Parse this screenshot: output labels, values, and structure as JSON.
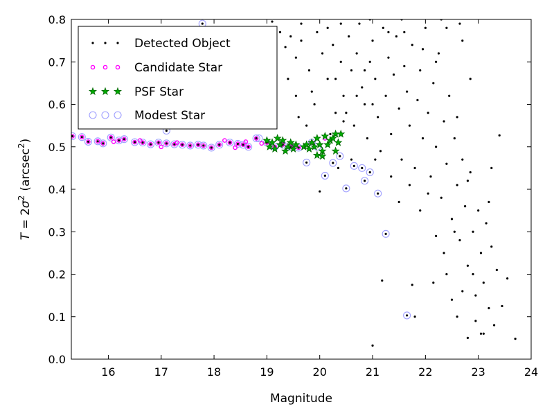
{
  "chart_data": {
    "type": "scatter",
    "xlabel": "Magnitude",
    "ylabel_parts": {
      "lhs": "T",
      "eq": " = 2",
      "sigma": "σ",
      "sup": "2",
      "unit": "(arcsec",
      "unit_sup": "2",
      "unit_close": ")"
    },
    "xlim": [
      15.3,
      24.0
    ],
    "ylim": [
      0.0,
      0.8
    ],
    "xticks": [
      16,
      17,
      18,
      19,
      20,
      21,
      22,
      23,
      24
    ],
    "yticks": [
      0.0,
      0.1,
      0.2,
      0.3,
      0.4,
      0.5,
      0.6,
      0.7,
      0.8
    ],
    "grid": false,
    "legend_position": "top-left",
    "colors": {
      "detected": "#000000",
      "candidate": "#ff00ff",
      "psf_face": "#00aa00",
      "psf_edge": "#006400",
      "modest": "#9f9fff"
    },
    "series": [
      {
        "name": "Detected Object",
        "marker": "dot",
        "points": [
          [
            15.32,
            0.525
          ],
          [
            15.5,
            0.523
          ],
          [
            15.62,
            0.512
          ],
          [
            15.8,
            0.513
          ],
          [
            15.9,
            0.508
          ],
          [
            16.05,
            0.522
          ],
          [
            16.2,
            0.515
          ],
          [
            16.3,
            0.518
          ],
          [
            16.5,
            0.511
          ],
          [
            16.65,
            0.51
          ],
          [
            16.8,
            0.506
          ],
          [
            16.95,
            0.51
          ],
          [
            17.1,
            0.508
          ],
          [
            17.1,
            0.538
          ],
          [
            17.25,
            0.506
          ],
          [
            17.4,
            0.505
          ],
          [
            17.55,
            0.503
          ],
          [
            17.7,
            0.505
          ],
          [
            17.8,
            0.503
          ],
          [
            17.78,
            0.79
          ],
          [
            17.95,
            0.498
          ],
          [
            18.1,
            0.505
          ],
          [
            18.3,
            0.51
          ],
          [
            18.45,
            0.507
          ],
          [
            18.55,
            0.505
          ],
          [
            18.65,
            0.5
          ],
          [
            18.8,
            0.52
          ],
          [
            19.0,
            0.51
          ],
          [
            19.15,
            0.5
          ],
          [
            19.3,
            0.505
          ],
          [
            19.45,
            0.5
          ],
          [
            19.6,
            0.498
          ],
          [
            19.75,
            0.463
          ],
          [
            19.85,
            0.51
          ],
          [
            20.0,
            0.395
          ],
          [
            20.1,
            0.432
          ],
          [
            20.25,
            0.462
          ],
          [
            20.38,
            0.478
          ],
          [
            20.5,
            0.402
          ],
          [
            20.65,
            0.455
          ],
          [
            20.8,
            0.45
          ],
          [
            20.85,
            0.42
          ],
          [
            20.95,
            0.44
          ],
          [
            21.1,
            0.39
          ],
          [
            21.25,
            0.295
          ],
          [
            21.65,
            0.103
          ],
          [
            21.18,
            0.185
          ],
          [
            21.0,
            0.032
          ],
          [
            18.95,
            0.73
          ],
          [
            19.1,
            0.795
          ],
          [
            19.25,
            0.77
          ],
          [
            19.35,
            0.735
          ],
          [
            19.45,
            0.76
          ],
          [
            19.55,
            0.71
          ],
          [
            19.65,
            0.75
          ],
          [
            19.8,
            0.68
          ],
          [
            19.85,
            0.63
          ],
          [
            19.9,
            0.6
          ],
          [
            19.55,
            0.62
          ],
          [
            19.4,
            0.66
          ],
          [
            19.6,
            0.57
          ],
          [
            19.75,
            0.55
          ],
          [
            20.05,
            0.72
          ],
          [
            20.15,
            0.78
          ],
          [
            20.25,
            0.74
          ],
          [
            20.3,
            0.66
          ],
          [
            20.4,
            0.7
          ],
          [
            20.45,
            0.62
          ],
          [
            20.5,
            0.58
          ],
          [
            20.55,
            0.76
          ],
          [
            20.6,
            0.68
          ],
          [
            20.65,
            0.55
          ],
          [
            20.7,
            0.72
          ],
          [
            20.75,
            0.79
          ],
          [
            20.8,
            0.64
          ],
          [
            20.85,
            0.6
          ],
          [
            20.9,
            0.52
          ],
          [
            20.95,
            0.7
          ],
          [
            21.0,
            0.75
          ],
          [
            21.05,
            0.66
          ],
          [
            21.1,
            0.57
          ],
          [
            21.15,
            0.49
          ],
          [
            21.2,
            0.78
          ],
          [
            21.25,
            0.62
          ],
          [
            21.3,
            0.71
          ],
          [
            21.35,
            0.53
          ],
          [
            21.4,
            0.67
          ],
          [
            21.45,
            0.76
          ],
          [
            21.5,
            0.59
          ],
          [
            21.55,
            0.47
          ],
          [
            21.6,
            0.69
          ],
          [
            21.65,
            0.63
          ],
          [
            21.7,
            0.55
          ],
          [
            21.75,
            0.74
          ],
          [
            21.8,
            0.45
          ],
          [
            21.85,
            0.61
          ],
          [
            21.9,
            0.68
          ],
          [
            21.95,
            0.52
          ],
          [
            22.0,
            0.78
          ],
          [
            22.05,
            0.58
          ],
          [
            22.1,
            0.43
          ],
          [
            22.15,
            0.65
          ],
          [
            22.2,
            0.5
          ],
          [
            22.25,
            0.72
          ],
          [
            22.3,
            0.38
          ],
          [
            22.35,
            0.56
          ],
          [
            22.4,
            0.46
          ],
          [
            22.45,
            0.62
          ],
          [
            22.5,
            0.33
          ],
          [
            22.55,
            0.52
          ],
          [
            22.6,
            0.41
          ],
          [
            22.65,
            0.28
          ],
          [
            22.7,
            0.47
          ],
          [
            22.75,
            0.36
          ],
          [
            22.8,
            0.22
          ],
          [
            22.85,
            0.44
          ],
          [
            22.9,
            0.3
          ],
          [
            22.95,
            0.15
          ],
          [
            23.0,
            0.35
          ],
          [
            23.05,
            0.25
          ],
          [
            23.1,
            0.18
          ],
          [
            23.15,
            0.32
          ],
          [
            23.2,
            0.12
          ],
          [
            23.25,
            0.45
          ],
          [
            23.3,
            0.08
          ],
          [
            23.35,
            0.21
          ],
          [
            23.1,
            0.06
          ],
          [
            22.8,
            0.05
          ],
          [
            22.5,
            0.14
          ],
          [
            22.4,
            0.2
          ],
          [
            22.6,
            0.1
          ],
          [
            22.95,
            0.09
          ],
          [
            23.4,
            0.527
          ],
          [
            23.7,
            0.048
          ],
          [
            23.55,
            0.19
          ],
          [
            23.25,
            0.265
          ],
          [
            23.45,
            0.125
          ],
          [
            23.05,
            0.06
          ],
          [
            22.15,
            0.18
          ],
          [
            21.8,
            0.1
          ],
          [
            21.75,
            0.175
          ],
          [
            21.05,
            0.47
          ],
          [
            20.4,
            0.79
          ],
          [
            20.2,
            0.53
          ],
          [
            20.95,
            0.8
          ],
          [
            21.55,
            0.8
          ],
          [
            22.3,
            0.8
          ],
          [
            22.65,
            0.79
          ],
          [
            20.35,
            0.45
          ],
          [
            20.45,
            0.56
          ],
          [
            20.6,
            0.47
          ],
          [
            21.35,
            0.43
          ],
          [
            21.5,
            0.37
          ],
          [
            21.7,
            0.41
          ],
          [
            21.9,
            0.35
          ],
          [
            22.05,
            0.39
          ],
          [
            22.2,
            0.29
          ],
          [
            22.35,
            0.25
          ],
          [
            22.55,
            0.3
          ],
          [
            22.7,
            0.16
          ],
          [
            22.9,
            0.2
          ],
          [
            23.2,
            0.37
          ],
          [
            22.8,
            0.42
          ],
          [
            22.6,
            0.57
          ],
          [
            22.85,
            0.66
          ],
          [
            22.7,
            0.75
          ],
          [
            22.4,
            0.78
          ],
          [
            22.2,
            0.7
          ],
          [
            21.95,
            0.73
          ],
          [
            21.6,
            0.77
          ],
          [
            21.3,
            0.77
          ],
          [
            21.0,
            0.6
          ],
          [
            20.85,
            0.68
          ],
          [
            20.7,
            0.62
          ],
          [
            20.3,
            0.58
          ],
          [
            20.15,
            0.66
          ],
          [
            19.95,
            0.77
          ],
          [
            19.65,
            0.79
          ]
        ]
      },
      {
        "name": "Candidate Star",
        "marker": "circle-small",
        "points": [
          [
            15.32,
            0.525
          ],
          [
            15.5,
            0.523
          ],
          [
            15.62,
            0.512
          ],
          [
            15.8,
            0.513
          ],
          [
            15.9,
            0.508
          ],
          [
            16.05,
            0.522
          ],
          [
            16.2,
            0.515
          ],
          [
            16.3,
            0.518
          ],
          [
            16.5,
            0.511
          ],
          [
            16.65,
            0.51
          ],
          [
            16.8,
            0.506
          ],
          [
            16.95,
            0.51
          ],
          [
            17.1,
            0.508
          ],
          [
            17.25,
            0.506
          ],
          [
            17.4,
            0.505
          ],
          [
            17.55,
            0.503
          ],
          [
            17.7,
            0.505
          ],
          [
            17.8,
            0.503
          ],
          [
            17.95,
            0.498
          ],
          [
            18.1,
            0.505
          ],
          [
            18.3,
            0.51
          ],
          [
            18.45,
            0.507
          ],
          [
            18.55,
            0.505
          ],
          [
            18.65,
            0.5
          ],
          [
            18.8,
            0.52
          ],
          [
            16.1,
            0.512
          ],
          [
            16.6,
            0.515
          ],
          [
            17.0,
            0.5
          ],
          [
            17.3,
            0.51
          ],
          [
            18.2,
            0.515
          ],
          [
            18.4,
            0.498
          ],
          [
            18.6,
            0.512
          ],
          [
            18.9,
            0.508
          ],
          [
            19.0,
            0.51
          ],
          [
            19.15,
            0.5
          ],
          [
            19.3,
            0.505
          ],
          [
            19.45,
            0.5
          ],
          [
            19.6,
            0.498
          ],
          [
            19.85,
            0.51
          ],
          [
            20.1,
            0.52
          ]
        ]
      },
      {
        "name": "PSF Star",
        "marker": "star",
        "points": [
          [
            19.0,
            0.515
          ],
          [
            19.05,
            0.5
          ],
          [
            19.1,
            0.51
          ],
          [
            19.15,
            0.495
          ],
          [
            19.2,
            0.52
          ],
          [
            19.25,
            0.505
          ],
          [
            19.3,
            0.515
          ],
          [
            19.35,
            0.49
          ],
          [
            19.4,
            0.5
          ],
          [
            19.45,
            0.51
          ],
          [
            19.5,
            0.495
          ],
          [
            19.55,
            0.505
          ],
          [
            19.7,
            0.5
          ],
          [
            19.75,
            0.505
          ],
          [
            19.8,
            0.495
          ],
          [
            19.85,
            0.51
          ],
          [
            19.9,
            0.5
          ],
          [
            19.95,
            0.52
          ],
          [
            20.0,
            0.505
          ],
          [
            20.05,
            0.49
          ],
          [
            20.1,
            0.525
          ],
          [
            20.15,
            0.505
          ],
          [
            20.2,
            0.515
          ],
          [
            20.25,
            0.52
          ],
          [
            20.3,
            0.53
          ],
          [
            20.35,
            0.51
          ],
          [
            20.4,
            0.53
          ],
          [
            19.95,
            0.48
          ],
          [
            20.05,
            0.478
          ],
          [
            20.3,
            0.49
          ]
        ]
      },
      {
        "name": "Modest Star",
        "marker": "circle-large",
        "points": [
          [
            15.32,
            0.525
          ],
          [
            15.5,
            0.523
          ],
          [
            15.62,
            0.512
          ],
          [
            15.8,
            0.513
          ],
          [
            15.9,
            0.508
          ],
          [
            16.05,
            0.522
          ],
          [
            16.2,
            0.515
          ],
          [
            16.3,
            0.518
          ],
          [
            16.5,
            0.511
          ],
          [
            16.65,
            0.51
          ],
          [
            16.8,
            0.506
          ],
          [
            16.95,
            0.51
          ],
          [
            17.1,
            0.508
          ],
          [
            17.1,
            0.538
          ],
          [
            17.25,
            0.506
          ],
          [
            17.4,
            0.505
          ],
          [
            17.55,
            0.503
          ],
          [
            17.7,
            0.505
          ],
          [
            17.8,
            0.503
          ],
          [
            17.78,
            0.79
          ],
          [
            17.95,
            0.498
          ],
          [
            18.1,
            0.505
          ],
          [
            18.3,
            0.51
          ],
          [
            18.45,
            0.507
          ],
          [
            18.55,
            0.505
          ],
          [
            18.65,
            0.5
          ],
          [
            18.8,
            0.52
          ],
          [
            19.0,
            0.51
          ],
          [
            19.15,
            0.5
          ],
          [
            19.3,
            0.505
          ],
          [
            19.45,
            0.5
          ],
          [
            19.6,
            0.498
          ],
          [
            19.75,
            0.463
          ],
          [
            19.85,
            0.51
          ],
          [
            20.1,
            0.432
          ],
          [
            20.25,
            0.462
          ],
          [
            20.38,
            0.478
          ],
          [
            20.5,
            0.402
          ],
          [
            20.65,
            0.455
          ],
          [
            20.8,
            0.45
          ],
          [
            20.85,
            0.42
          ],
          [
            20.95,
            0.44
          ],
          [
            21.1,
            0.39
          ],
          [
            21.25,
            0.295
          ],
          [
            21.65,
            0.103
          ],
          [
            18.85,
            0.52
          ],
          [
            19.95,
            0.5
          ]
        ]
      }
    ]
  },
  "legend": {
    "items": [
      {
        "label": "Detected Object",
        "series": 0
      },
      {
        "label": "Candidate Star",
        "series": 1
      },
      {
        "label": "PSF Star",
        "series": 2
      },
      {
        "label": "Modest Star",
        "series": 3
      }
    ]
  }
}
